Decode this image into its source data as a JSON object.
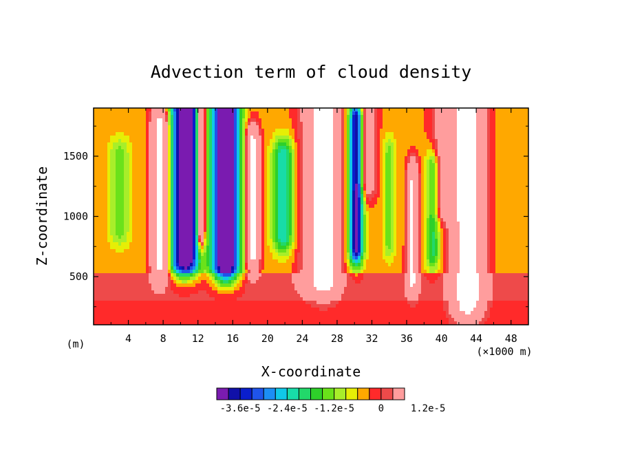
{
  "chart_data": {
    "type": "heatmap",
    "title": "Advection term of cloud density",
    "xlabel": "X-coordinate",
    "ylabel": "Z-coordinate",
    "x_unit_label": "(×1000 m)",
    "z_unit_label": "(m)",
    "xlim": [
      0,
      50
    ],
    "ylim": [
      100,
      1900
    ],
    "x_ticks": [
      4,
      8,
      12,
      16,
      20,
      24,
      28,
      32,
      36,
      40,
      44,
      48
    ],
    "y_ticks": [
      500,
      1000,
      1500
    ],
    "grid": false,
    "legend_position": "bottom",
    "colorbar": {
      "labels": [
        "-3.6e-5",
        "-2.4e-5",
        "-1.2e-5",
        "0",
        "1.2e-5"
      ],
      "label_values": [
        -3.6e-05,
        -2.4e-05,
        -1.2e-05,
        0,
        1.2e-05
      ],
      "min": -4.2e-05,
      "max": 2.4e-05,
      "step": 3e-06,
      "colors": [
        "#7a1bb0",
        "#1010a8",
        "#0a1ecc",
        "#1f54ea",
        "#1c8ef4",
        "#10c8e8",
        "#18dca8",
        "#22d86a",
        "#2ed02a",
        "#6ae21a",
        "#a8ee2a",
        "#e6ee06",
        "#ffa800",
        "#ff2a2a",
        "#ee4a4a",
        "#ff9d9d"
      ]
    },
    "features": [
      {
        "x": 10.5,
        "z_bottom": 650,
        "z_top": 1900,
        "peak": -4.5e-05,
        "width": 1.6
      },
      {
        "x": 15.2,
        "z_bottom": 600,
        "z_top": 1900,
        "peak": -4.5e-05,
        "width": 1.6
      },
      {
        "x": 30.2,
        "z_bottom": 750,
        "z_top": 1800,
        "peak": -3.8e-05,
        "width": 0.8
      },
      {
        "x": 21.8,
        "z_bottom": 850,
        "z_top": 1500,
        "peak": -2e-05,
        "width": 1.2
      },
      {
        "x": 39.0,
        "z_bottom": 700,
        "z_top": 1400,
        "peak": -1.5e-05,
        "width": 0.8
      },
      {
        "x": 3.0,
        "z_bottom": 900,
        "z_top": 1500,
        "peak": -1e-05,
        "width": 1.2
      },
      {
        "x": 34.0,
        "z_bottom": 800,
        "z_top": 1500,
        "peak": -1e-05,
        "width": 0.7
      },
      {
        "x": 7.6,
        "z_bottom": 620,
        "z_top": 1750,
        "peak": 3.5e-05,
        "width": 0.9
      },
      {
        "x": 12.4,
        "z_bottom": 900,
        "z_top": 1900,
        "peak": 3.5e-05,
        "width": 0.4
      },
      {
        "x": 18.3,
        "z_bottom": 700,
        "z_top": 1600,
        "peak": 3.5e-05,
        "width": 0.7
      },
      {
        "x": 26.5,
        "z_bottom": 500,
        "z_top": 1900,
        "peak": 4e-05,
        "width": 1.5
      },
      {
        "x": 36.7,
        "z_bottom": 500,
        "z_top": 1300,
        "peak": 3e-05,
        "width": 0.6
      },
      {
        "x": 43.0,
        "z_bottom": 300,
        "z_top": 1900,
        "peak": 4e-05,
        "width": 1.6
      },
      {
        "x": 40.5,
        "z_bottom": 1100,
        "z_top": 1900,
        "peak": 1.4e-05,
        "width": 1.5
      },
      {
        "x": 24.5,
        "z_bottom": 500,
        "z_top": 1900,
        "peak": 6e-06,
        "width": 1.5
      },
      {
        "x": 31.5,
        "z_bottom": 1300,
        "z_top": 1900,
        "peak": 1.5e-05,
        "width": 1.0
      }
    ],
    "background_bands": [
      {
        "z_from": 100,
        "z_to": 300,
        "value": -2e-06
      },
      {
        "z_from": 300,
        "z_to": 520,
        "value": 1e-06
      },
      {
        "z_from": 520,
        "z_to": 1900,
        "value": -4e-06
      }
    ]
  }
}
